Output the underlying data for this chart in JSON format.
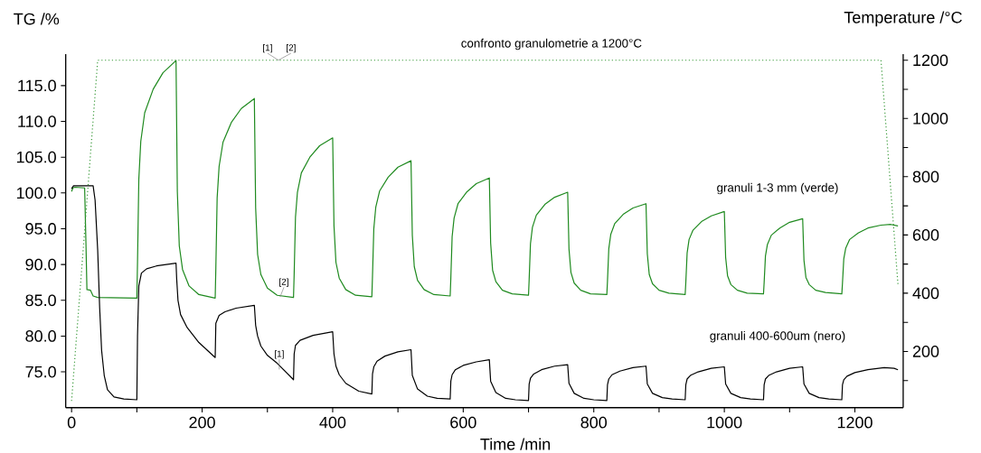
{
  "chart_data": {
    "type": "line",
    "title": "confronto granulometrie a 1200°C",
    "xlabel": "Time /min",
    "ylabel": "TG /%",
    "y2label": "Temperature /°C",
    "xlim": [
      -9,
      1274
    ],
    "ylim": [
      70,
      119.4
    ],
    "y2lim": [
      7,
      1221
    ],
    "xticks": [
      0,
      {
        "value": 100,
        "label": null
      },
      200,
      {
        "value": 300,
        "label": null
      },
      400,
      {
        "value": 500,
        "label": null
      },
      600,
      {
        "value": 700,
        "label": null
      },
      800,
      {
        "value": 900,
        "label": null
      },
      1000,
      {
        "value": 1100,
        "label": null
      },
      1200
    ],
    "yticks": [
      {
        "value": 75,
        "label": "75.0"
      },
      {
        "value": 80,
        "label": "80.0"
      },
      {
        "value": 85,
        "label": "85.0"
      },
      {
        "value": 90,
        "label": "90.0"
      },
      {
        "value": 95,
        "label": "95.0"
      },
      {
        "value": 100,
        "label": "100.0"
      },
      {
        "value": 105,
        "label": "105.0"
      },
      {
        "value": 110,
        "label": "110.0"
      },
      {
        "value": 115,
        "label": "115.0"
      }
    ],
    "y2ticks": [
      {
        "value": 100,
        "label": null
      },
      200,
      {
        "value": 300,
        "label": null
      },
      400,
      {
        "value": 500,
        "label": null
      },
      600,
      {
        "value": 700,
        "label": null
      },
      800,
      {
        "value": 900,
        "label": null
      },
      1000,
      {
        "value": 1100,
        "label": null
      },
      1200
    ],
    "series": [
      {
        "name": "granuli 1-3 mm (verde)",
        "color": "#1f8a1f",
        "x": [
          0,
          2,
          5,
          20,
          22,
          23.5,
          29,
          33,
          40,
          100,
          101,
          103,
          106,
          112,
          125,
          140,
          160,
          162,
          165,
          170,
          180,
          195,
          220,
          221,
          223,
          226,
          232,
          245,
          260,
          280,
          282,
          285,
          290,
          300,
          315,
          340,
          341,
          343,
          346,
          352,
          365,
          380,
          400,
          402,
          405,
          410,
          420,
          435,
          460,
          461,
          463,
          466,
          472,
          485,
          500,
          520,
          522,
          525,
          530,
          540,
          555,
          580,
          581,
          583,
          586,
          592,
          605,
          620,
          640,
          642,
          645,
          650,
          660,
          675,
          700,
          701,
          703,
          706,
          712,
          725,
          740,
          760,
          762,
          765,
          770,
          780,
          795,
          820,
          821,
          823,
          826,
          832,
          845,
          860,
          880,
          882,
          885,
          890,
          900,
          915,
          940,
          941,
          943,
          946,
          952,
          965,
          980,
          1000,
          1002,
          1005,
          1010,
          1020,
          1035,
          1060,
          1061,
          1063,
          1066,
          1072,
          1085,
          1100,
          1120,
          1122,
          1125,
          1130,
          1140,
          1155,
          1180,
          1181,
          1183,
          1186,
          1192,
          1205,
          1220,
          1240,
          1255,
          1266
        ],
        "values": [
          100.2,
          100.7,
          100.8,
          100.7,
          93,
          86.5,
          86.4,
          85.6,
          85.4,
          85.3,
          90.3,
          101.9,
          107.2,
          111.2,
          114.5,
          116.8,
          118.5,
          100.2,
          92.6,
          89.3,
          87.0,
          85.8,
          85.3,
          89.5,
          99.3,
          103.7,
          107.1,
          109.9,
          111.8,
          113.2,
          97.9,
          91.4,
          88.6,
          86.7,
          85.7,
          85.4,
          88.7,
          96.6,
          100.1,
          102.8,
          105.0,
          106.6,
          107.7,
          95.4,
          90.3,
          88.1,
          86.5,
          85.7,
          85.5,
          88.4,
          95.0,
          98.0,
          100.3,
          102.2,
          103.6,
          104.5,
          94.1,
          89.7,
          87.8,
          86.5,
          85.8,
          85.6,
          88.1,
          93.9,
          96.5,
          98.5,
          100.1,
          101.3,
          102.1,
          93.0,
          89.2,
          87.6,
          86.4,
          85.9,
          85.7,
          87.9,
          92.9,
          95.2,
          96.9,
          98.4,
          99.4,
          100.1,
          92.2,
          88.9,
          87.4,
          86.4,
          85.9,
          85.8,
          87.7,
          92.2,
          94.2,
          95.7,
          97.0,
          97.9,
          98.5,
          91.5,
          88.6,
          87.3,
          86.4,
          86.0,
          85.8,
          87.5,
          91.6,
          93.5,
          94.8,
          96.0,
          96.8,
          97.4,
          91.0,
          88.4,
          87.2,
          86.4,
          86.0,
          85.9,
          87.5,
          91.2,
          92.8,
          94.1,
          95.1,
          95.9,
          96.4,
          90.6,
          88.2,
          87.2,
          86.4,
          86.1,
          85.9,
          87.4,
          90.8,
          92.3,
          93.5,
          94.4,
          95.1,
          95.5,
          95.6,
          95.4
        ]
      },
      {
        "name": "granuli 400-600um (nero)",
        "color": "#000000",
        "x": [
          0,
          3,
          33,
          36,
          40,
          43,
          46,
          50,
          55,
          65,
          80,
          100,
          101,
          103,
          107,
          115,
          130,
          160,
          161,
          163,
          167,
          177,
          195,
          220,
          221,
          226,
          235,
          252,
          280,
          282,
          285,
          290,
          300,
          315,
          340,
          341,
          343,
          350,
          370,
          400,
          402,
          405,
          410,
          420,
          440,
          460,
          461,
          463,
          468,
          480,
          500,
          520,
          522,
          530,
          545,
          560,
          580,
          581,
          583,
          588,
          600,
          620,
          640,
          642,
          650,
          665,
          680,
          700,
          701,
          703,
          708,
          720,
          740,
          760,
          762,
          770,
          785,
          800,
          820,
          821,
          823,
          828,
          840,
          860,
          880,
          882,
          890,
          905,
          920,
          940,
          941,
          943,
          948,
          960,
          980,
          1000,
          1002,
          1010,
          1025,
          1040,
          1060,
          1061,
          1063,
          1068,
          1080,
          1100,
          1120,
          1122,
          1130,
          1145,
          1160,
          1180,
          1181,
          1183,
          1188,
          1200,
          1220,
          1245,
          1260,
          1266
        ],
        "values": [
          100.6,
          101.0,
          101.0,
          99,
          92,
          84,
          78,
          74.5,
          72.5,
          71.5,
          71.2,
          71.1,
          80,
          87,
          88.8,
          89.4,
          89.8,
          90.2,
          88,
          85,
          83,
          81.2,
          79.1,
          77.0,
          81.8,
          82.9,
          83.4,
          83.9,
          84.3,
          81.5,
          80.0,
          78.6,
          77.3,
          76.2,
          73.9,
          77.5,
          78.7,
          79.4,
          80.1,
          80.6,
          77.5,
          75.8,
          74.6,
          73.4,
          72.3,
          71.9,
          74.7,
          75.7,
          76.5,
          77.2,
          77.8,
          78.1,
          74.5,
          72.6,
          71.6,
          71.3,
          71.2,
          73.7,
          74.6,
          75.3,
          75.9,
          76.4,
          76.7,
          73.7,
          72.1,
          71.3,
          71.1,
          71.0,
          73.3,
          74.1,
          74.7,
          75.3,
          75.8,
          76.0,
          73.4,
          72.0,
          71.3,
          71.1,
          71.0,
          73.2,
          74.0,
          74.6,
          75.1,
          75.6,
          75.8,
          73.3,
          72.0,
          71.4,
          71.2,
          71.1,
          73.2,
          74.0,
          74.5,
          75.0,
          75.5,
          75.7,
          73.3,
          72.0,
          71.4,
          71.2,
          71.1,
          73.2,
          74.0,
          74.5,
          75.0,
          75.5,
          75.7,
          73.3,
          72.0,
          71.4,
          71.2,
          71.1,
          73.2,
          73.9,
          74.4,
          74.9,
          75.3,
          75.6,
          75.5,
          75.3
        ]
      },
      {
        "color": "#3a9a3a",
        "axis": "y2",
        "line_style": "dotted",
        "x": [
          0,
          40,
          1240,
          1266
        ],
        "values": [
          30,
          1200,
          1200,
          430
        ]
      }
    ],
    "annotations": [
      "[1]",
      "[2]",
      "[2]",
      "[1]"
    ]
  }
}
